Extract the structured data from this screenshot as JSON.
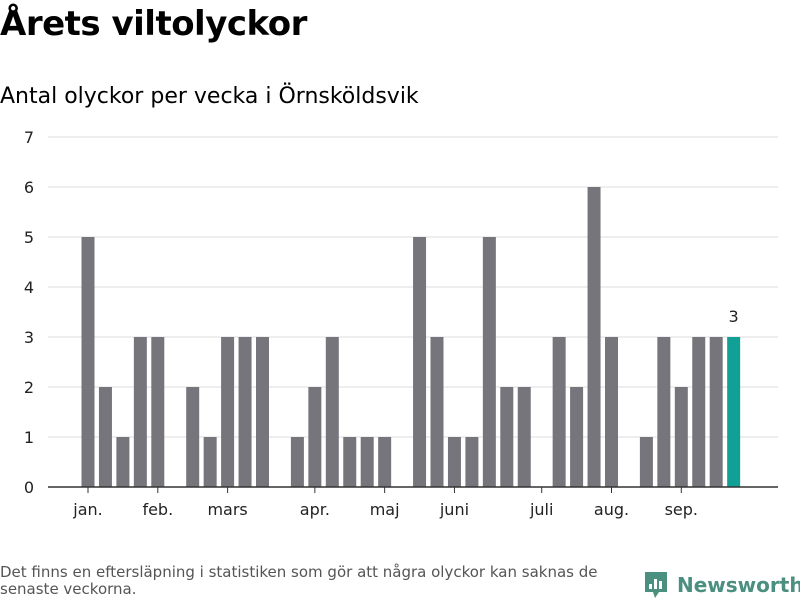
{
  "title": "Årets viltolyckor",
  "subtitle": "Antal olyckor per vecka i Örnsköldsvik",
  "footnote": "Det finns en eftersläpning i statistiken som gör att några olyckor kan saknas de senaste veckorna.",
  "brand": {
    "name": "Newsworthy",
    "color": "#4a8f80"
  },
  "chart_data": {
    "type": "bar",
    "x": [
      1,
      2,
      3,
      4,
      5,
      6,
      7,
      8,
      9,
      10,
      11,
      12,
      13,
      14,
      15,
      16,
      17,
      18,
      19,
      20,
      21,
      22,
      23,
      24,
      25,
      26,
      27,
      28,
      29,
      30,
      31,
      32,
      33,
      34,
      35,
      36,
      37,
      38,
      39
    ],
    "values": [
      5,
      2,
      1,
      3,
      3,
      0,
      2,
      1,
      3,
      3,
      3,
      0,
      1,
      2,
      3,
      1,
      1,
      1,
      0,
      5,
      3,
      1,
      1,
      5,
      2,
      2,
      0,
      3,
      2,
      6,
      3,
      0,
      1,
      3,
      2,
      3,
      3,
      3,
      null
    ],
    "ylim": [
      0,
      7
    ],
    "yticks": [
      0,
      1,
      2,
      3,
      4,
      5,
      6,
      7
    ],
    "month_ticks": [
      {
        "label": "jan.",
        "x": 1
      },
      {
        "label": "feb.",
        "x": 5
      },
      {
        "label": "mars",
        "x": 9
      },
      {
        "label": "apr.",
        "x": 14
      },
      {
        "label": "maj",
        "x": 18
      },
      {
        "label": "juni",
        "x": 22
      },
      {
        "label": "juli",
        "x": 27
      },
      {
        "label": "aug.",
        "x": 31
      },
      {
        "label": "sep.",
        "x": 35
      }
    ],
    "highlight_index": 37,
    "highlight_label": "3",
    "colors": {
      "bar": "#76757c",
      "highlight": "#10a096",
      "grid": "#dddddd",
      "axis": "#333333"
    },
    "grid": true
  }
}
